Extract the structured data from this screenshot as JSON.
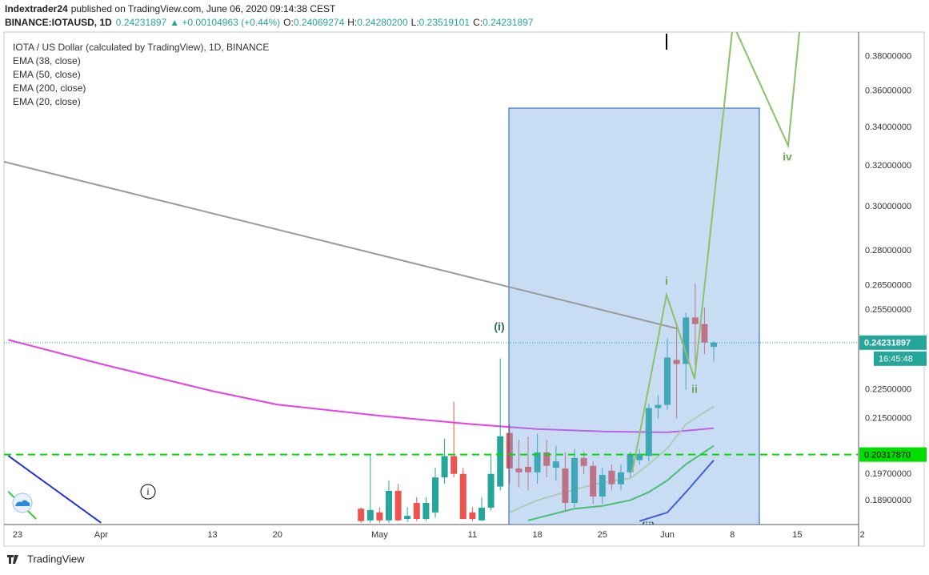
{
  "header": {
    "author": "Indextrader24",
    "published": "published on TradingView.com, June 06, 2020 09:14:38 CEST",
    "symbol": "BINANCE:IOTAUSD, 1D",
    "price": "0.24231897",
    "change": "▲ +0.00104963 (+0.44%)",
    "fields": [
      {
        "label": "O:",
        "value": "0.24069274"
      },
      {
        "label": "H:",
        "value": "0.24280200"
      },
      {
        "label": "L:",
        "value": "0.23519101"
      },
      {
        "label": "C:",
        "value": "0.24231897"
      }
    ]
  },
  "chart_data": {
    "type": "candlestick",
    "title": "IOTA / US Dollar (calculated by TradingView), 1D, BINANCE",
    "log_scale": true,
    "up_color": "#26a69a",
    "down_color": "#ef5350",
    "xlim": [
      -1.46,
      90.6
    ],
    "ylim": [
      0.182,
      0.395
    ],
    "xticks": [
      {
        "value": 0,
        "label": "23"
      },
      {
        "value": 9,
        "label": "Apr"
      },
      {
        "value": 21,
        "label": "13"
      },
      {
        "value": 28,
        "label": "20"
      },
      {
        "value": 39,
        "label": "May"
      },
      {
        "value": 49,
        "label": "11"
      },
      {
        "value": 56,
        "label": "18"
      },
      {
        "value": 63,
        "label": "25"
      },
      {
        "value": 70,
        "label": "Jun"
      },
      {
        "value": 77,
        "label": "8"
      },
      {
        "value": 84,
        "label": "15"
      },
      {
        "value": 91,
        "label": "2"
      }
    ],
    "yticks": [
      {
        "value": 0.189,
        "label": "0.18900000"
      },
      {
        "value": 0.197,
        "label": "0.19700000"
      },
      {
        "value": 0.215,
        "label": "0.21500000"
      },
      {
        "value": 0.225,
        "label": "0.22500000"
      },
      {
        "value": 0.255,
        "label": "0.25500000"
      },
      {
        "value": 0.265,
        "label": "0.26500000"
      },
      {
        "value": 0.28,
        "label": "0.28000000"
      },
      {
        "value": 0.3,
        "label": "0.30000000"
      },
      {
        "value": 0.32,
        "label": "0.32000000"
      },
      {
        "value": 0.34,
        "label": "0.34000000"
      },
      {
        "value": 0.36,
        "label": "0.36000000"
      },
      {
        "value": 0.38,
        "label": "0.38000000"
      }
    ],
    "x": [
      37,
      38,
      39,
      40,
      41,
      42,
      43,
      44,
      45,
      46,
      47,
      48,
      49,
      50,
      51,
      52,
      53,
      54,
      55,
      56,
      57,
      58,
      59,
      60,
      61,
      62,
      63,
      64,
      65,
      66,
      67,
      68,
      69,
      70,
      71,
      72,
      73,
      74,
      75
    ],
    "open": [
      0.1866,
      0.1832,
      0.1855,
      0.1832,
      0.1919,
      0.1836,
      0.1883,
      0.1836,
      0.1855,
      0.196,
      0.2027,
      0.1971,
      0.1855,
      0.1832,
      0.1869,
      0.1932,
      0.2102,
      0.1988,
      0.1993,
      0.1976,
      0.2039,
      0.199,
      0.1988,
      0.1883,
      0.2021,
      0.1996,
      0.1902,
      0.1981,
      0.1939,
      0.1976,
      0.2014,
      0.2027,
      0.2186,
      0.2197,
      0.2358,
      0.2343,
      0.2521,
      0.2495,
      0.24069274
    ],
    "high": [
      0.187,
      0.2031,
      0.187,
      0.1951,
      0.194,
      0.187,
      0.19,
      0.19,
      0.199,
      0.2084,
      0.2208,
      0.199,
      0.187,
      0.19,
      0.2031,
      0.2364,
      0.2131,
      0.208,
      0.209,
      0.21,
      0.208,
      0.206,
      0.204,
      0.205,
      0.204,
      0.201,
      0.199,
      0.2,
      0.2,
      0.204,
      0.205,
      0.22,
      0.223,
      0.244,
      0.25,
      0.254,
      0.266,
      0.256,
      0.242802
    ],
    "low": [
      0.1825,
      0.1825,
      0.1825,
      0.1825,
      0.183,
      0.1828,
      0.183,
      0.183,
      0.184,
      0.194,
      0.196,
      0.1836,
      0.183,
      0.183,
      0.186,
      0.192,
      0.194,
      0.193,
      0.192,
      0.194,
      0.196,
      0.195,
      0.186,
      0.187,
      0.197,
      0.188,
      0.188,
      0.192,
      0.192,
      0.196,
      0.2,
      0.201,
      0.215,
      0.218,
      0.215,
      0.225,
      0.234,
      0.238,
      0.23519101
    ],
    "close": [
      0.183,
      0.1862,
      0.1832,
      0.1919,
      0.1832,
      0.1845,
      0.1836,
      0.1883,
      0.196,
      0.2027,
      0.1971,
      0.1836,
      0.1836,
      0.1869,
      0.1971,
      0.2091,
      0.1988,
      0.1976,
      0.1976,
      0.2039,
      0.1996,
      0.201,
      0.1883,
      0.2021,
      0.1996,
      0.1902,
      0.1968,
      0.1939,
      0.1976,
      0.2034,
      0.2034,
      0.2186,
      0.2197,
      0.2367,
      0.2343,
      0.2521,
      0.2495,
      0.2424,
      0.24231897
    ],
    "series": [
      {
        "name": "EMA (38, close)",
        "color": "#33cc33",
        "x": [
          -1,
          2,
          null,
          55,
          60,
          63,
          66,
          68,
          70,
          72,
          75
        ],
        "values": [
          0.1917,
          0.1836,
          null,
          0.1832,
          0.1866,
          0.1874,
          0.1891,
          0.1915,
          0.1951,
          0.2001,
          0.206
        ]
      },
      {
        "name": "EMA (50, close)",
        "color": "#2233dd",
        "x": [
          -1,
          9,
          null,
          67,
          70,
          72,
          75
        ],
        "values": [
          0.2028,
          0.1825,
          null,
          0.183,
          0.1855,
          0.1915,
          0.2014
        ]
      },
      {
        "name": "EMA (200, close)",
        "color": "#e83de8",
        "x": [
          -1,
          9,
          21,
          28,
          39,
          49,
          56,
          63,
          70,
          75
        ],
        "values": [
          0.2434,
          0.2343,
          0.2245,
          0.2198,
          0.216,
          0.2131,
          0.2115,
          0.2107,
          0.2104,
          0.2118
        ]
      },
      {
        "name": "EMA (20, close)",
        "color": "#d9dfa0",
        "x": [
          53,
          56,
          60,
          63,
          66,
          68,
          70,
          72,
          75
        ],
        "values": [
          0.1855,
          0.1891,
          0.1923,
          0.1945,
          0.1957,
          0.2001,
          0.2052,
          0.2131,
          0.2192
        ]
      }
    ],
    "last_price": 0.24231897,
    "countdown": "16:45:48",
    "hline": {
      "value": 0.2031787,
      "label": "0.20317870",
      "color": "#00dd00"
    },
    "wave_labels": [
      "(i)",
      "i",
      "ii",
      "iv",
      "(ii)",
      "i"
    ]
  },
  "footer": {
    "brand": "TradingView"
  }
}
